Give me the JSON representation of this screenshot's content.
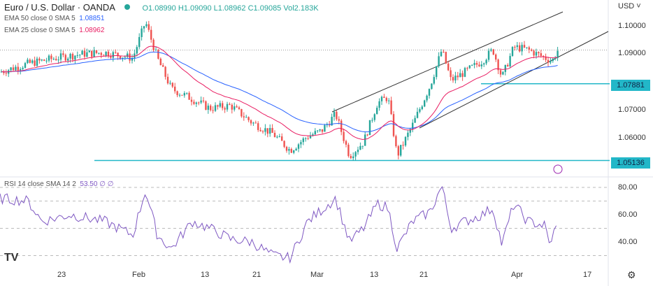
{
  "header": {
    "symbol": "Euro / U.S. Dollar · OANDA",
    "open": "O1.08990",
    "high": "H1.09090",
    "low": "L1.08962",
    "close": "C1.09085",
    "volume": "Vol2.183K",
    "currency": "USD"
  },
  "indicators": [
    {
      "label": "EMA 50 close 0 SMA 5",
      "value": "1.08851",
      "color": "#2962ff"
    },
    {
      "label": "EMA 25 close 0 SMA 5",
      "value": "1.08962",
      "color": "#e91e63"
    }
  ],
  "rsi": {
    "label": "RSI 14 close SMA 14 2",
    "value": "53.50",
    "extra": "∅ ∅",
    "color": "#7e57c2"
  },
  "colors": {
    "up": "#26a69a",
    "down": "#ef5350",
    "level": "#22b7c8"
  },
  "chart_data": {
    "type": "candlestick",
    "price_ticks": [
      "1.10000",
      "1.09000",
      "1.07000",
      "1.06000"
    ],
    "rsi_ticks": [
      "80.00",
      "60.00",
      "40.00"
    ],
    "x_ticks": [
      "23",
      "Feb",
      "13",
      "21",
      "Mar",
      "13",
      "21",
      "Apr",
      "17"
    ],
    "levels": [
      {
        "value": 1.07881,
        "label": "1.07881"
      },
      {
        "value": 1.05136,
        "label": "1.05136"
      }
    ],
    "last_price": 1.09085,
    "close_path": [
      [
        0,
        1.083
      ],
      [
        40,
        1.086
      ],
      [
        80,
        1.088
      ],
      [
        120,
        1.0895
      ],
      [
        150,
        1.09
      ],
      [
        190,
        1.088
      ],
      [
        208,
        1.101
      ],
      [
        225,
        1.088
      ],
      [
        245,
        1.077
      ],
      [
        270,
        1.074
      ],
      [
        300,
        1.07
      ],
      [
        330,
        1.071
      ],
      [
        360,
        1.065
      ],
      [
        390,
        1.061
      ],
      [
        415,
        1.055
      ],
      [
        440,
        1.06
      ],
      [
        460,
        1.062
      ],
      [
        480,
        1.068
      ],
      [
        500,
        1.053
      ],
      [
        520,
        1.058
      ],
      [
        540,
        1.072
      ],
      [
        555,
        1.074
      ],
      [
        568,
        1.053
      ],
      [
        590,
        1.064
      ],
      [
        615,
        1.078
      ],
      [
        632,
        1.091
      ],
      [
        645,
        1.08
      ],
      [
        665,
        1.083
      ],
      [
        690,
        1.087
      ],
      [
        705,
        1.091
      ],
      [
        718,
        1.081
      ],
      [
        735,
        1.092
      ],
      [
        755,
        1.091
      ],
      [
        780,
        1.088
      ],
      [
        790,
        1.087
      ],
      [
        798,
        1.09085
      ]
    ],
    "rsi_path": [
      [
        0,
        72
      ],
      [
        40,
        70
      ],
      [
        60,
        55
      ],
      [
        100,
        60
      ],
      [
        150,
        55
      ],
      [
        190,
        45
      ],
      [
        208,
        78
      ],
      [
        225,
        45
      ],
      [
        245,
        35
      ],
      [
        275,
        55
      ],
      [
        300,
        50
      ],
      [
        330,
        42
      ],
      [
        360,
        40
      ],
      [
        390,
        30
      ],
      [
        415,
        28
      ],
      [
        440,
        55
      ],
      [
        480,
        72
      ],
      [
        500,
        40
      ],
      [
        520,
        50
      ],
      [
        540,
        68
      ],
      [
        555,
        65
      ],
      [
        568,
        35
      ],
      [
        590,
        55
      ],
      [
        615,
        62
      ],
      [
        632,
        81
      ],
      [
        645,
        50
      ],
      [
        665,
        55
      ],
      [
        690,
        60
      ],
      [
        705,
        65
      ],
      [
        718,
        38
      ],
      [
        735,
        68
      ],
      [
        755,
        55
      ],
      [
        780,
        52
      ],
      [
        785,
        38
      ],
      [
        798,
        53.5
      ]
    ]
  }
}
